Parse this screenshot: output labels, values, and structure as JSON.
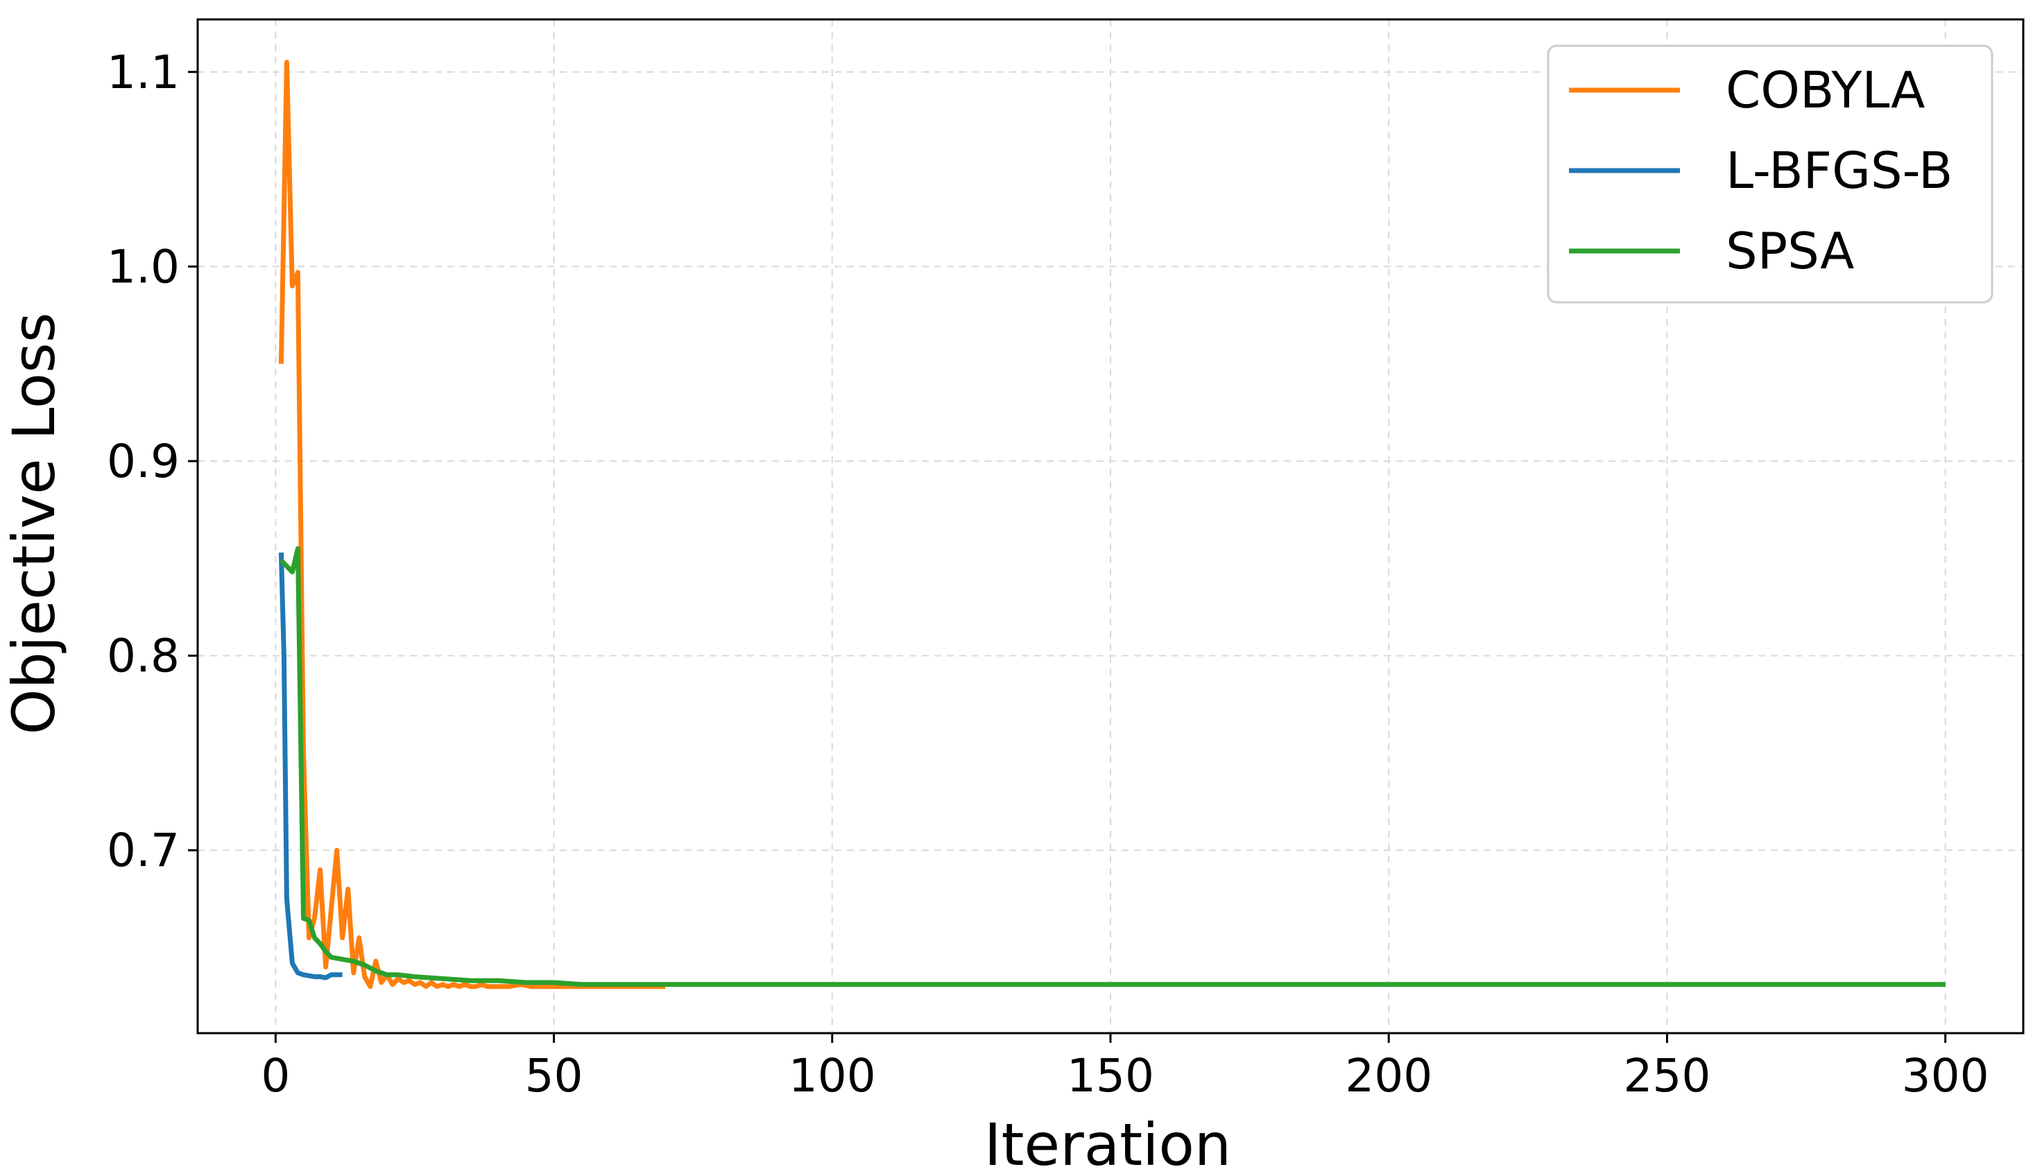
{
  "chart_data": {
    "type": "line",
    "title": "",
    "xlabel": "Iteration",
    "ylabel": "Objective Loss",
    "xlim": [
      -14,
      314
    ],
    "ylim": [
      0.606,
      1.127
    ],
    "xticks": [
      0,
      50,
      100,
      150,
      200,
      250,
      300
    ],
    "xtick_labels": [
      "0",
      "50",
      "100",
      "150",
      "200",
      "250",
      "300"
    ],
    "yticks": [
      0.7,
      0.8,
      0.9,
      1.0,
      1.1
    ],
    "ytick_labels": [
      "0.7",
      "0.8",
      "0.9",
      "1.0",
      "1.1"
    ],
    "grid": true,
    "legend_position": "top-right",
    "series": [
      {
        "name": "COBYLA",
        "color": "#ff7f0e",
        "x": [
          1,
          2,
          3,
          4,
          5,
          6,
          7,
          8,
          9,
          10,
          11,
          12,
          13,
          14,
          15,
          16,
          17,
          18,
          19,
          20,
          21,
          22,
          23,
          24,
          25,
          26,
          27,
          28,
          29,
          30,
          31,
          32,
          33,
          34,
          35,
          36,
          37,
          38,
          39,
          40,
          42,
          44,
          46,
          48,
          50,
          52,
          55,
          58,
          60,
          63,
          66,
          70
        ],
        "y": [
          0.95,
          1.105,
          0.99,
          0.997,
          0.75,
          0.655,
          0.665,
          0.69,
          0.64,
          0.67,
          0.7,
          0.655,
          0.68,
          0.637,
          0.655,
          0.635,
          0.63,
          0.643,
          0.632,
          0.636,
          0.631,
          0.634,
          0.632,
          0.633,
          0.631,
          0.632,
          0.63,
          0.632,
          0.63,
          0.631,
          0.63,
          0.631,
          0.63,
          0.631,
          0.63,
          0.63,
          0.631,
          0.63,
          0.63,
          0.63,
          0.63,
          0.631,
          0.63,
          0.63,
          0.63,
          0.63,
          0.63,
          0.63,
          0.63,
          0.63,
          0.63,
          0.63
        ]
      },
      {
        "name": "L-BFGS-B",
        "color": "#1f77b4",
        "x": [
          1,
          1.5,
          2,
          3,
          4,
          5,
          6,
          7,
          8,
          9,
          10,
          11,
          12
        ],
        "y": [
          0.853,
          0.8,
          0.675,
          0.642,
          0.637,
          0.636,
          0.6355,
          0.635,
          0.635,
          0.6345,
          0.636,
          0.636,
          0.636
        ]
      },
      {
        "name": "SPSA",
        "color": "#2ca02c",
        "x": [
          1,
          2,
          3,
          4,
          5,
          6,
          7,
          8,
          9,
          10,
          12,
          14,
          16,
          18,
          20,
          22,
          25,
          30,
          35,
          40,
          45,
          50,
          55,
          60,
          70,
          80,
          90,
          100,
          110,
          120,
          130,
          140,
          150,
          160,
          170,
          180,
          190,
          200,
          210,
          220,
          230,
          240,
          250,
          260,
          270,
          280,
          290,
          300
        ],
        "y": [
          0.849,
          0.846,
          0.843,
          0.855,
          0.665,
          0.664,
          0.655,
          0.652,
          0.648,
          0.645,
          0.644,
          0.643,
          0.641,
          0.638,
          0.636,
          0.636,
          0.635,
          0.634,
          0.633,
          0.633,
          0.632,
          0.632,
          0.631,
          0.631,
          0.631,
          0.631,
          0.631,
          0.631,
          0.631,
          0.631,
          0.631,
          0.631,
          0.631,
          0.631,
          0.631,
          0.631,
          0.631,
          0.631,
          0.631,
          0.631,
          0.631,
          0.631,
          0.631,
          0.631,
          0.631,
          0.631,
          0.631,
          0.631
        ]
      }
    ]
  }
}
